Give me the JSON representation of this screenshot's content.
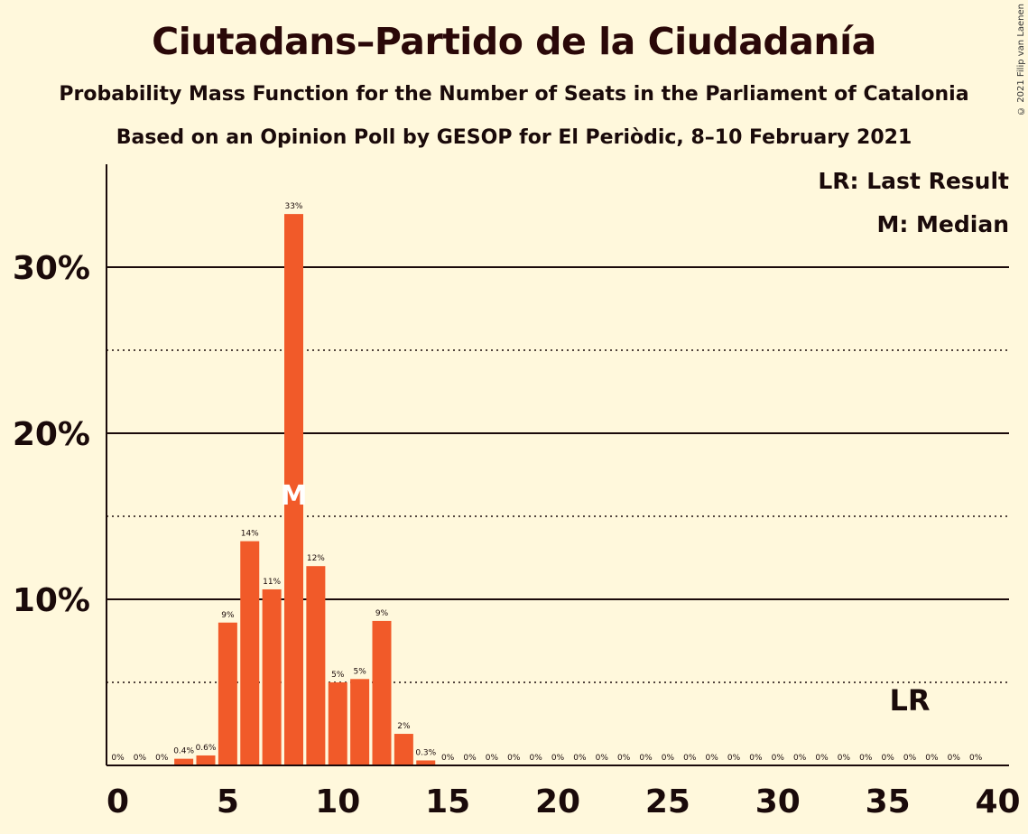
{
  "title": "Ciutadans–Partido de la Ciudadanía",
  "subtitle": "Probability Mass Function for the Number of Seats in the Parliament of Catalonia",
  "subtitle2": "Based on an Opinion Poll by GESOP for El Periòdic, 8–10 February 2021",
  "copyright": "© 2021 Filip van Laenen",
  "legend": {
    "lr": "LR: Last Result",
    "median": "M: Median"
  },
  "colors": {
    "bar": "#f15a29",
    "background": "#fff8dc",
    "text": "#1a0a0a"
  },
  "chart_data": {
    "type": "bar",
    "x": [
      0,
      1,
      2,
      3,
      4,
      5,
      6,
      7,
      8,
      9,
      10,
      11,
      12,
      13,
      14,
      15,
      16,
      17,
      18,
      19,
      20,
      21,
      22,
      23,
      24,
      25,
      26,
      27,
      28,
      29,
      30,
      31,
      32,
      33,
      34,
      35,
      36,
      37,
      38,
      39,
      40
    ],
    "values": [
      0,
      0,
      0,
      0.4,
      0.6,
      8.6,
      13.5,
      10.6,
      33.2,
      12.0,
      5.0,
      5.2,
      8.7,
      1.9,
      0.3,
      0,
      0,
      0,
      0,
      0,
      0,
      0,
      0,
      0,
      0,
      0,
      0,
      0,
      0,
      0,
      0,
      0,
      0,
      0,
      0,
      0,
      0,
      0,
      0,
      0,
      0
    ],
    "labels": [
      "0%",
      "0%",
      "0%",
      "0.4%",
      "0.6%",
      "9%",
      "14%",
      "11%",
      "33%",
      "12%",
      "5%",
      "5%",
      "9%",
      "2%",
      "0.3%",
      "0%",
      "0%",
      "0%",
      "0%",
      "0%",
      "0%",
      "0%",
      "0%",
      "0%",
      "0%",
      "0%",
      "0%",
      "0%",
      "0%",
      "0%",
      "0%",
      "0%",
      "0%",
      "0%",
      "0%",
      "0%",
      "0%",
      "0%",
      "0%",
      "0%",
      ""
    ],
    "xticks": [
      0,
      5,
      10,
      15,
      20,
      25,
      30,
      35,
      40
    ],
    "xtick_labels": [
      "0",
      "5",
      "10",
      "15",
      "20",
      "25",
      "30",
      "35",
      "40"
    ],
    "yticks_major": [
      10,
      20,
      30
    ],
    "ytick_labels": [
      "10%",
      "20%",
      "30%"
    ],
    "yticks_minor": [
      5,
      15,
      25
    ],
    "ylim": [
      0,
      36
    ],
    "xlim": [
      -0.5,
      40.5
    ],
    "median_seat": 8,
    "median_marker": "M",
    "last_result_seat": 36,
    "last_result_marker": "LR",
    "legend_position": "top-right"
  }
}
